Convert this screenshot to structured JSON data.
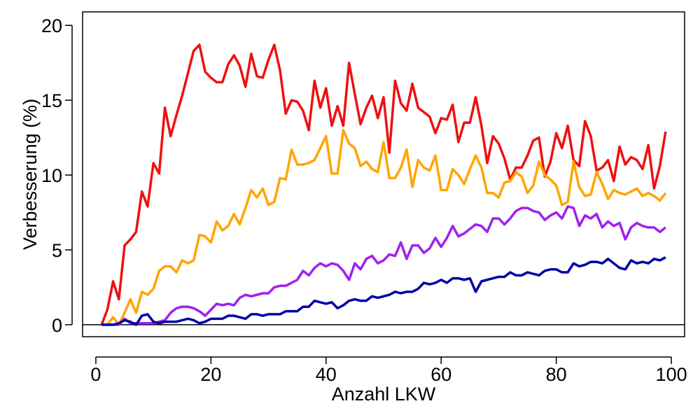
{
  "chart_data": {
    "type": "line",
    "xlabel": "Anzahl LKW",
    "ylabel": "Verbesserung (%)",
    "x": [
      1,
      2,
      3,
      4,
      5,
      6,
      7,
      8,
      9,
      10,
      11,
      12,
      13,
      14,
      15,
      16,
      17,
      18,
      19,
      20,
      21,
      22,
      23,
      24,
      25,
      26,
      27,
      28,
      29,
      30,
      31,
      32,
      33,
      34,
      35,
      36,
      37,
      38,
      39,
      40,
      41,
      42,
      43,
      44,
      45,
      46,
      47,
      48,
      49,
      50,
      51,
      52,
      53,
      54,
      55,
      56,
      57,
      58,
      59,
      60,
      61,
      62,
      63,
      64,
      65,
      66,
      67,
      68,
      69,
      70,
      71,
      72,
      73,
      74,
      75,
      76,
      77,
      78,
      79,
      80,
      81,
      82,
      83,
      84,
      85,
      86,
      87,
      88,
      89,
      90,
      91,
      92,
      93,
      94,
      95,
      96,
      97,
      98,
      99
    ],
    "series": [
      {
        "color": "#ee1111",
        "values": [
          0,
          1.0,
          2.9,
          1.7,
          5.3,
          5.7,
          6.2,
          8.9,
          7.9,
          10.8,
          10.1,
          14.5,
          12.6,
          14.0,
          15.3,
          16.8,
          18.3,
          18.7,
          16.9,
          16.5,
          16.2,
          16.2,
          17.4,
          18.0,
          17.3,
          15.9,
          18.1,
          16.6,
          16.5,
          17.7,
          18.7,
          17.0,
          14.1,
          15.0,
          14.9,
          14.3,
          13.0,
          16.3,
          14.5,
          15.8,
          13.3,
          14.6,
          13.3,
          17.5,
          15.4,
          13.4,
          14.5,
          15.3,
          13.8,
          15.2,
          11.5,
          16.3,
          14.8,
          14.3,
          16.1,
          14.5,
          14.2,
          13.9,
          12.8,
          13.8,
          13.7,
          14.7,
          12.2,
          13.5,
          13.5,
          15.2,
          13.3,
          10.8,
          12.6,
          12.1,
          11.1,
          9.7,
          10.5,
          10.5,
          11.3,
          12.3,
          12.5,
          9.9,
          10.9,
          12.8,
          11.8,
          13.3,
          11.0,
          10.6,
          13.6,
          12.6,
          10.3,
          10.5,
          11.0,
          9.6,
          11.9,
          10.7,
          11.2,
          11.0,
          10.4,
          12.0,
          9.1,
          10.6,
          12.9
        ]
      },
      {
        "color": "#ffa500",
        "values": [
          0,
          0,
          0.5,
          0,
          0.8,
          1.7,
          0.8,
          2.2,
          2.0,
          2.4,
          3.6,
          3.9,
          3.9,
          3.5,
          4.3,
          4.1,
          4.3,
          6.0,
          5.9,
          5.5,
          6.9,
          6.3,
          6.6,
          7.4,
          6.7,
          7.8,
          9.0,
          8.5,
          9.1,
          8.0,
          8.2,
          9.8,
          9.7,
          11.7,
          10.7,
          10.7,
          10.8,
          11.0,
          11.8,
          12.6,
          10.1,
          10.1,
          13.0,
          12.1,
          11.8,
          10.6,
          10.9,
          10.4,
          10.2,
          12.2,
          9.8,
          9.8,
          10.5,
          11.7,
          9.2,
          11.0,
          10.5,
          10.3,
          11.3,
          9.0,
          9.0,
          10.4,
          10.0,
          9.4,
          10.4,
          11.3,
          10.5,
          8.8,
          8.8,
          8.5,
          9.5,
          9.6,
          10.2,
          9.9,
          8.8,
          9.3,
          10.9,
          10.0,
          9.7,
          9.3,
          8.0,
          8.2,
          10.9,
          9.2,
          8.6,
          8.7,
          10.2,
          9.4,
          8.4,
          9.0,
          8.8,
          8.7,
          8.9,
          9.1,
          8.6,
          8.8,
          8.6,
          8.3,
          8.8
        ]
      },
      {
        "color": "#a020f0",
        "values": [
          0,
          0,
          0,
          0,
          0.4,
          0.1,
          0.1,
          0.1,
          0.1,
          0.1,
          0.2,
          0.3,
          0.8,
          1.1,
          1.2,
          1.2,
          1.1,
          0.9,
          0.6,
          1.0,
          1.4,
          1.3,
          1.4,
          1.3,
          1.8,
          2.0,
          1.9,
          2.0,
          2.1,
          2.1,
          2.5,
          2.6,
          2.6,
          2.8,
          3.0,
          3.6,
          3.3,
          3.8,
          4.1,
          3.9,
          4.1,
          4.0,
          3.6,
          3.0,
          4.1,
          3.7,
          4.4,
          4.6,
          4.1,
          4.3,
          4.7,
          4.6,
          5.5,
          4.4,
          5.3,
          5.3,
          4.8,
          5.1,
          5.8,
          5.2,
          5.8,
          6.6,
          5.9,
          6.1,
          6.4,
          6.7,
          6.6,
          6.2,
          7.1,
          7.1,
          6.7,
          7.1,
          7.6,
          7.8,
          7.8,
          7.6,
          7.5,
          7.0,
          7.3,
          7.5,
          7.1,
          7.9,
          7.8,
          6.6,
          7.3,
          7.1,
          7.4,
          6.5,
          6.9,
          6.6,
          6.8,
          5.7,
          6.5,
          6.8,
          6.6,
          6.5,
          6.5,
          6.2,
          6.5
        ]
      },
      {
        "color": "#0000a8",
        "values": [
          0,
          0,
          0,
          0.1,
          0.3,
          0.2,
          0,
          0.6,
          0.7,
          0.2,
          0.1,
          0.2,
          0.2,
          0.2,
          0.3,
          0.4,
          0.3,
          0.1,
          0.2,
          0.4,
          0.4,
          0.4,
          0.6,
          0.6,
          0.5,
          0.4,
          0.7,
          0.7,
          0.6,
          0.7,
          0.7,
          0.7,
          0.9,
          0.9,
          0.9,
          1.2,
          1.2,
          1.6,
          1.5,
          1.4,
          1.5,
          1.1,
          1.3,
          1.6,
          1.7,
          1.6,
          1.6,
          1.9,
          1.8,
          1.9,
          2.0,
          2.2,
          2.1,
          2.2,
          2.2,
          2.4,
          2.8,
          2.7,
          2.8,
          3.0,
          2.8,
          3.1,
          3.1,
          3.0,
          3.1,
          2.2,
          2.9,
          3.0,
          3.1,
          3.2,
          3.2,
          3.5,
          3.3,
          3.3,
          3.5,
          3.4,
          3.3,
          3.6,
          3.7,
          3.7,
          3.5,
          3.5,
          4.1,
          3.9,
          4.0,
          4.2,
          4.2,
          4.1,
          4.4,
          4.1,
          3.8,
          3.7,
          4.3,
          4.1,
          4.2,
          4.1,
          4.4,
          4.3,
          4.5
        ]
      }
    ],
    "reference_line": 0,
    "xlim": [
      -2.3,
      102.3
    ],
    "ylim": [
      -0.8,
      20.9
    ],
    "xticks": [
      0,
      20,
      40,
      60,
      80,
      100
    ],
    "yticks": [
      0,
      5,
      10,
      15,
      20
    ]
  }
}
